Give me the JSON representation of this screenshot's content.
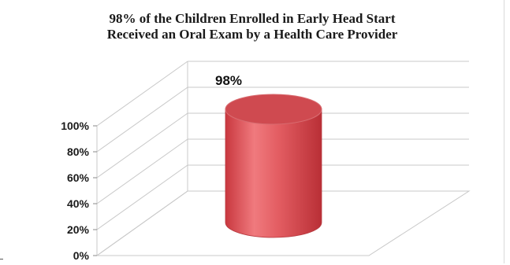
{
  "chart_data": {
    "type": "bar",
    "title_lines": [
      "98% of the Children  Enrolled  in Early Head Start",
      "Received an Oral Exam by a Health Care Provider"
    ],
    "categories": [
      ""
    ],
    "values": [
      98
    ],
    "data_labels": [
      "98%"
    ],
    "y_ticks": [
      "0%",
      "20%",
      "40%",
      "60%",
      "80%",
      "100%"
    ],
    "ylim": [
      0,
      100
    ],
    "style": "3d-cylinder",
    "grid": true,
    "legend": "none",
    "colors": {
      "bar": "#e0555a",
      "bar_top": "#cf4a50",
      "grid": "#c8c8c8"
    }
  }
}
